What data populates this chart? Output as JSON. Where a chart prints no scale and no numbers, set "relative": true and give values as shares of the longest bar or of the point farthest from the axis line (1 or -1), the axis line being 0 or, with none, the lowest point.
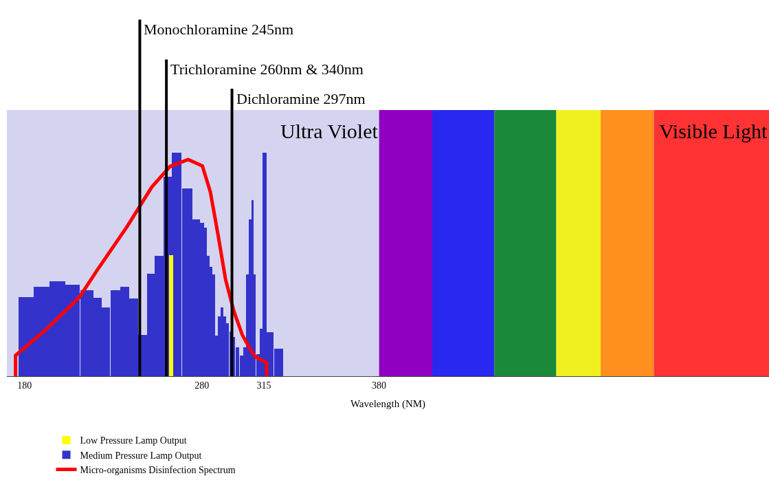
{
  "chart_data": {
    "type": "bar",
    "relative": true,
    "xlabel": "Wavelength (NM)",
    "xlim": [
      170,
      600
    ],
    "xticks": [
      180,
      280,
      315,
      380
    ],
    "grid": false,
    "legend": "bottom left",
    "series": [
      {
        "name": "Low Pressure Lamp Output",
        "type": "bar",
        "color": "#ffff00",
        "x": [
          262.6
        ],
        "values": [
          0.54
        ]
      },
      {
        "name": "Medium Pressure Lamp Output",
        "color": "#3333cc",
        "x": [
          180.75,
          189.45,
          198.45,
          206.95,
          215.15,
          221.05,
          225.65,
          231.25,
          236.4,
          241.55,
          246.65,
          251.25,
          255.9,
          260.8,
          265.9,
          271.8,
          276.95,
          280.1,
          281.9,
          283.45,
          285.0,
          286.55,
          288.25,
          289.9,
          291.4,
          292.75,
          294.45,
          296.35,
          297.9,
          300.1,
          302.45,
          304.3,
          305.85,
          307.25,
          308.45,
          309.65,
          311.65,
          313.65,
          315.35,
          318.45,
          323.35
        ],
        "values": [
          0.355,
          0.4,
          0.423,
          0.41,
          0.383,
          0.352,
          0.306,
          0.383,
          0.4,
          0.346,
          0.185,
          0.457,
          0.537,
          0.892,
          1.0,
          0.84,
          0.7,
          0.685,
          0.664,
          0.537,
          0.49,
          0.454,
          0.182,
          0.269,
          0.306,
          0.269,
          0.238,
          0.2,
          0.176,
          0.13,
          0.093,
          0.13,
          0.454,
          0.7,
          0.787,
          0.454,
          0.099,
          0.213,
          1.0,
          0.198,
          0.123
        ]
      },
      {
        "name": "Micro-organisms Disinfection Spectrum",
        "type": "line",
        "color": "#ff0000",
        "x": [
          174.9,
          174.9,
          191.8,
          210.8,
          221.0,
          237.9,
          251.8,
          262.1,
          272.3,
          280.3,
          284.8,
          289.0,
          293.4,
          298.1,
          302.8,
          306.2,
          309.7,
          316.6,
          316.6
        ],
        "values": [
          0,
          0.093,
          0.207,
          0.352,
          0.475,
          0.67,
          0.846,
          0.938,
          0.969,
          0.94,
          0.824,
          0.639,
          0.432,
          0.29,
          0.185,
          0.136,
          0.09,
          0.059,
          0
        ]
      }
    ],
    "ref_lines": [
      {
        "axis": "x",
        "value": 245,
        "label": "Monochloramine 245nm",
        "color": "#000000"
      },
      {
        "axis": "x",
        "value": 260,
        "label": "Trichloramine 260nm & 340nm",
        "color": "#000000"
      },
      {
        "axis": "x",
        "value": 297,
        "label": "Dichloramine 297nm",
        "color": "#000000"
      }
    ],
    "bands": [
      {
        "axis": "x",
        "from": 170,
        "to": 380,
        "label": "Ultra Violet",
        "color": "#d4d4f0"
      },
      {
        "axis": "x",
        "from": 380,
        "to": 410,
        "color": "#9000c0"
      },
      {
        "axis": "x",
        "from": 410,
        "to": 445,
        "color": "#2828f0"
      },
      {
        "axis": "x",
        "from": 445,
        "to": 480,
        "color": "#1a8a3a"
      },
      {
        "axis": "x",
        "from": 480,
        "to": 505,
        "color": "#f0f020"
      },
      {
        "axis": "x",
        "from": 505,
        "to": 535,
        "color": "#ff9020"
      },
      {
        "axis": "x",
        "from": 535,
        "to": 600,
        "label": "Visible Light",
        "color": "#ff3333"
      }
    ]
  }
}
